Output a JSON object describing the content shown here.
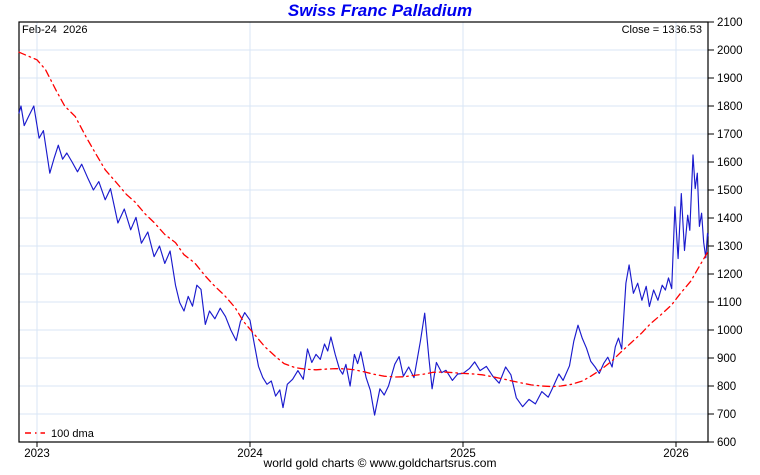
{
  "header": {
    "date_label": "Feb-24  2026",
    "close_label": "Close = 1336.53"
  },
  "footer": {
    "text": "world gold charts © www.goldchartsrus.com"
  },
  "colors": {
    "title": "#0000ee",
    "price_line": "#1a1acd",
    "dma_line": "#ff0000",
    "grid": "#d8e5f5",
    "border": "#000000"
  },
  "chart_data": {
    "type": "line",
    "title": "Swiss Franc Palladium",
    "close": 1336.53,
    "grid": true,
    "x_axis": {
      "ticks": [
        2023,
        2024,
        2025,
        2026
      ],
      "labels": [
        "2023",
        "2024",
        "2025",
        "2026"
      ],
      "range": [
        2022.915,
        2026.155
      ]
    },
    "y_axis": {
      "side": "right",
      "range": [
        600,
        2100
      ],
      "step": 100,
      "ticks": [
        2100,
        2000,
        1900,
        1800,
        1700,
        1600,
        1500,
        1400,
        1300,
        1200,
        1100,
        1000,
        900,
        800,
        700,
        600
      ],
      "labels": [
        "2100",
        "2000",
        "1900",
        "1800",
        "1700",
        "1600",
        "1500",
        "1400",
        "1300",
        "1200",
        "1100",
        "1000",
        "900",
        "800",
        "700",
        "600"
      ]
    },
    "legend": {
      "position": "bottom-left",
      "entries": [
        {
          "label": "100 dma",
          "color": "#ff0000",
          "style": "dash-dot"
        }
      ]
    },
    "series": [
      {
        "name": "Swiss Franc Palladium price",
        "color": "#1a1acd",
        "style": "solid",
        "points": [
          [
            2022.915,
            1775
          ],
          [
            2022.925,
            1800
          ],
          [
            2022.94,
            1730
          ],
          [
            2022.96,
            1762
          ],
          [
            2022.985,
            1800
          ],
          [
            2023.01,
            1685
          ],
          [
            2023.03,
            1712
          ],
          [
            2023.06,
            1560
          ],
          [
            2023.08,
            1612
          ],
          [
            2023.1,
            1660
          ],
          [
            2023.12,
            1610
          ],
          [
            2023.14,
            1632
          ],
          [
            2023.165,
            1600
          ],
          [
            2023.19,
            1565
          ],
          [
            2023.21,
            1592
          ],
          [
            2023.24,
            1540
          ],
          [
            2023.265,
            1500
          ],
          [
            2023.29,
            1530
          ],
          [
            2023.32,
            1465
          ],
          [
            2023.345,
            1505
          ],
          [
            2023.38,
            1382
          ],
          [
            2023.41,
            1432
          ],
          [
            2023.44,
            1358
          ],
          [
            2023.465,
            1402
          ],
          [
            2023.49,
            1310
          ],
          [
            2023.52,
            1350
          ],
          [
            2023.55,
            1262
          ],
          [
            2023.575,
            1300
          ],
          [
            2023.6,
            1238
          ],
          [
            2023.625,
            1282
          ],
          [
            2023.65,
            1160
          ],
          [
            2023.67,
            1098
          ],
          [
            2023.69,
            1068
          ],
          [
            2023.71,
            1120
          ],
          [
            2023.73,
            1085
          ],
          [
            2023.75,
            1160
          ],
          [
            2023.77,
            1145
          ],
          [
            2023.79,
            1020
          ],
          [
            2023.81,
            1068
          ],
          [
            2023.835,
            1040
          ],
          [
            2023.86,
            1078
          ],
          [
            2023.885,
            1048
          ],
          [
            2023.91,
            1000
          ],
          [
            2023.935,
            962
          ],
          [
            2023.955,
            1030
          ],
          [
            2023.975,
            1062
          ],
          [
            2024.0,
            1035
          ],
          [
            2024.02,
            950
          ],
          [
            2024.04,
            870
          ],
          [
            2024.06,
            830
          ],
          [
            2024.08,
            806
          ],
          [
            2024.1,
            818
          ],
          [
            2024.12,
            764
          ],
          [
            2024.14,
            786
          ],
          [
            2024.155,
            723
          ],
          [
            2024.175,
            806
          ],
          [
            2024.2,
            824
          ],
          [
            2024.225,
            855
          ],
          [
            2024.25,
            824
          ],
          [
            2024.27,
            932
          ],
          [
            2024.29,
            884
          ],
          [
            2024.31,
            913
          ],
          [
            2024.33,
            895
          ],
          [
            2024.35,
            950
          ],
          [
            2024.365,
            925
          ],
          [
            2024.38,
            975
          ],
          [
            2024.4,
            913
          ],
          [
            2024.42,
            860
          ],
          [
            2024.435,
            842
          ],
          [
            2024.45,
            877
          ],
          [
            2024.47,
            800
          ],
          [
            2024.49,
            913
          ],
          [
            2024.505,
            880
          ],
          [
            2024.52,
            922
          ],
          [
            2024.545,
            830
          ],
          [
            2024.565,
            785
          ],
          [
            2024.585,
            696
          ],
          [
            2024.61,
            790
          ],
          [
            2024.63,
            768
          ],
          [
            2024.65,
            800
          ],
          [
            2024.68,
            878
          ],
          [
            2024.7,
            905
          ],
          [
            2024.72,
            835
          ],
          [
            2024.745,
            868
          ],
          [
            2024.77,
            830
          ],
          [
            2024.8,
            960
          ],
          [
            2024.82,
            1060
          ],
          [
            2024.84,
            900
          ],
          [
            2024.855,
            790
          ],
          [
            2024.875,
            884
          ],
          [
            2024.9,
            848
          ],
          [
            2024.92,
            856
          ],
          [
            2024.95,
            820
          ],
          [
            2024.975,
            843
          ],
          [
            2025.0,
            845
          ],
          [
            2025.03,
            862
          ],
          [
            2025.055,
            886
          ],
          [
            2025.08,
            855
          ],
          [
            2025.11,
            870
          ],
          [
            2025.14,
            835
          ],
          [
            2025.17,
            810
          ],
          [
            2025.2,
            868
          ],
          [
            2025.225,
            840
          ],
          [
            2025.25,
            758
          ],
          [
            2025.28,
            726
          ],
          [
            2025.31,
            752
          ],
          [
            2025.34,
            736
          ],
          [
            2025.37,
            780
          ],
          [
            2025.4,
            760
          ],
          [
            2025.42,
            792
          ],
          [
            2025.45,
            843
          ],
          [
            2025.47,
            820
          ],
          [
            2025.5,
            872
          ],
          [
            2025.52,
            960
          ],
          [
            2025.54,
            1017
          ],
          [
            2025.56,
            970
          ],
          [
            2025.58,
            935
          ],
          [
            2025.6,
            888
          ],
          [
            2025.62,
            868
          ],
          [
            2025.64,
            845
          ],
          [
            2025.66,
            880
          ],
          [
            2025.68,
            903
          ],
          [
            2025.7,
            868
          ],
          [
            2025.715,
            940
          ],
          [
            2025.73,
            971
          ],
          [
            2025.745,
            932
          ],
          [
            2025.765,
            1167
          ],
          [
            2025.78,
            1232
          ],
          [
            2025.8,
            1131
          ],
          [
            2025.82,
            1167
          ],
          [
            2025.84,
            1106
          ],
          [
            2025.86,
            1156
          ],
          [
            2025.875,
            1084
          ],
          [
            2025.895,
            1143
          ],
          [
            2025.915,
            1106
          ],
          [
            2025.935,
            1160
          ],
          [
            2025.95,
            1143
          ],
          [
            2025.965,
            1186
          ],
          [
            2025.98,
            1148
          ],
          [
            2025.995,
            1440
          ],
          [
            2026.01,
            1255
          ],
          [
            2026.025,
            1487
          ],
          [
            2026.04,
            1284
          ],
          [
            2026.055,
            1410
          ],
          [
            2026.065,
            1356
          ],
          [
            2026.08,
            1625
          ],
          [
            2026.09,
            1505
          ],
          [
            2026.1,
            1560
          ],
          [
            2026.11,
            1370
          ],
          [
            2026.12,
            1417
          ],
          [
            2026.13,
            1312
          ],
          [
            2026.14,
            1258
          ],
          [
            2026.148,
            1345
          ],
          [
            2026.155,
            1336.53
          ]
        ]
      },
      {
        "name": "100 dma",
        "color": "#ff0000",
        "style": "dash-dot",
        "points": [
          [
            2022.915,
            1992
          ],
          [
            2023.0,
            1965
          ],
          [
            2023.04,
            1930
          ],
          [
            2023.09,
            1855
          ],
          [
            2023.13,
            1800
          ],
          [
            2023.18,
            1762
          ],
          [
            2023.23,
            1690
          ],
          [
            2023.27,
            1637
          ],
          [
            2023.32,
            1572
          ],
          [
            2023.37,
            1529
          ],
          [
            2023.42,
            1484
          ],
          [
            2023.46,
            1457
          ],
          [
            2023.51,
            1413
          ],
          [
            2023.55,
            1384
          ],
          [
            2023.6,
            1341
          ],
          [
            2023.65,
            1312
          ],
          [
            2023.69,
            1269
          ],
          [
            2023.74,
            1240
          ],
          [
            2023.79,
            1193
          ],
          [
            2023.83,
            1160
          ],
          [
            2023.88,
            1124
          ],
          [
            2023.93,
            1080
          ],
          [
            2023.97,
            1030
          ],
          [
            2024.02,
            985
          ],
          [
            2024.07,
            940
          ],
          [
            2024.12,
            905
          ],
          [
            2024.16,
            880
          ],
          [
            2024.21,
            866
          ],
          [
            2024.26,
            860
          ],
          [
            2024.31,
            858
          ],
          [
            2024.35,
            860
          ],
          [
            2024.4,
            862
          ],
          [
            2024.45,
            861
          ],
          [
            2024.49,
            858
          ],
          [
            2024.54,
            850
          ],
          [
            2024.58,
            842
          ],
          [
            2024.63,
            835
          ],
          [
            2024.68,
            832
          ],
          [
            2024.72,
            833
          ],
          [
            2024.77,
            838
          ],
          [
            2024.82,
            843
          ],
          [
            2024.86,
            849
          ],
          [
            2024.91,
            850
          ],
          [
            2024.95,
            848
          ],
          [
            2025.0,
            845
          ],
          [
            2025.05,
            843
          ],
          [
            2025.09,
            840
          ],
          [
            2025.14,
            833
          ],
          [
            2025.19,
            825
          ],
          [
            2025.23,
            818
          ],
          [
            2025.28,
            810
          ],
          [
            2025.32,
            804
          ],
          [
            2025.37,
            800
          ],
          [
            2025.42,
            798
          ],
          [
            2025.46,
            800
          ],
          [
            2025.51,
            806
          ],
          [
            2025.56,
            818
          ],
          [
            2025.6,
            835
          ],
          [
            2025.65,
            860
          ],
          [
            2025.7,
            890
          ],
          [
            2025.74,
            920
          ],
          [
            2025.79,
            955
          ],
          [
            2025.84,
            990
          ],
          [
            2025.88,
            1022
          ],
          [
            2025.93,
            1055
          ],
          [
            2025.98,
            1090
          ],
          [
            2026.02,
            1130
          ],
          [
            2026.07,
            1175
          ],
          [
            2026.11,
            1228
          ],
          [
            2026.155,
            1280
          ]
        ]
      }
    ]
  }
}
